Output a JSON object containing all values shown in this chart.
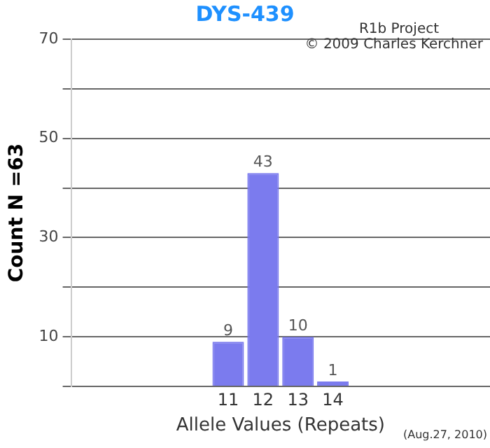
{
  "chart_data": {
    "type": "bar",
    "title": "DYS-439",
    "xlabel": "Allele Values (Repeats)",
    "ylabel": "Count N =63",
    "categories": [
      null,
      null,
      null,
      null,
      "11",
      "12",
      "13",
      "14",
      null,
      null,
      null,
      null
    ],
    "values": [
      null,
      null,
      null,
      null,
      9,
      43,
      10,
      1,
      null,
      null,
      null,
      null
    ],
    "color": "#7b7bee",
    "data_labels": true,
    "grid": "y",
    "ylim": [
      0,
      70
    ],
    "yticks": [
      {
        "value": 0,
        "label": null
      },
      10,
      {
        "value": 20,
        "label": null
      },
      30,
      {
        "value": 40,
        "label": null
      },
      50,
      {
        "value": 60,
        "label": null
      },
      70
    ],
    "annotations": [
      "R1b Project",
      "© 2009 Charles Kerchner",
      "(Aug.27, 2010)"
    ]
  }
}
